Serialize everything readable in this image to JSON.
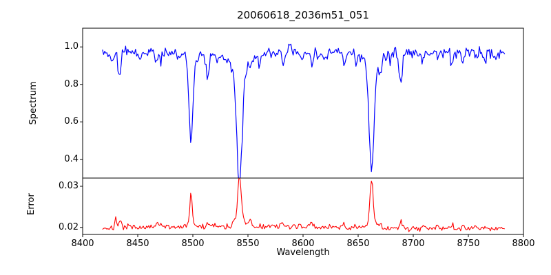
{
  "chart_data": {
    "type": "line",
    "title": "20060618_2036m51_051",
    "xlabel": "Wavelength",
    "xlim": [
      8400,
      8800
    ],
    "x_ticks": [
      {
        "v": 8400,
        "label": "8400"
      },
      {
        "v": 8450,
        "label": "8450"
      },
      {
        "v": 8500,
        "label": "8500"
      },
      {
        "v": 8550,
        "label": "8550"
      },
      {
        "v": 8600,
        "label": "8600"
      },
      {
        "v": 8650,
        "label": "8650"
      },
      {
        "v": 8700,
        "label": "8700"
      },
      {
        "v": 8750,
        "label": "8750"
      },
      {
        "v": 8800,
        "label": "8800"
      }
    ],
    "x_data_start": 8418,
    "x_data_end": 8783,
    "x_step": 1,
    "colors": {
      "spectrum_line": "#0000ff",
      "error_line": "#ff0000",
      "axis": "#000000",
      "background": "#ffffff"
    },
    "subplots": [
      {
        "name": "spectrum",
        "ylabel": "Spectrum",
        "ylim": [
          0.3,
          1.1
        ],
        "y_ticks": [
          {
            "v": 0.4,
            "label": "0.4"
          },
          {
            "v": 0.6,
            "label": "0.6"
          },
          {
            "v": 0.8,
            "label": "0.8"
          },
          {
            "v": 1.0,
            "label": "1.0"
          }
        ],
        "baseline": 0.975,
        "noise_sigma": 0.0125,
        "noise_seed": 42,
        "absorption_lines": [
          {
            "c": 8427.0,
            "d": 0.045,
            "s": 1.2
          },
          {
            "c": 8433.5,
            "d": 0.145,
            "s": 1.2
          },
          {
            "c": 8452.0,
            "d": 0.035,
            "s": 1.0
          },
          {
            "c": 8467.0,
            "d": 0.07,
            "s": 1.2
          },
          {
            "c": 8471.0,
            "d": 0.045,
            "s": 1.0
          },
          {
            "c": 8489.0,
            "d": 0.03,
            "s": 1.0
          },
          {
            "c": 8498.3,
            "d": 0.445,
            "s": 1.7,
            "wd": 0.05,
            "wg": 5
          },
          {
            "c": 8513.5,
            "d": 0.115,
            "s": 1.2
          },
          {
            "c": 8522.0,
            "d": 0.03,
            "s": 1.0
          },
          {
            "c": 8542.3,
            "d": 0.62,
            "s": 2.4,
            "wd": 0.1,
            "wg": 9
          },
          {
            "c": 8552.0,
            "d": 0.045,
            "s": 1.0
          },
          {
            "c": 8560.0,
            "d": 0.03,
            "s": 1.0
          },
          {
            "c": 8582.0,
            "d": 0.04,
            "s": 1.0
          },
          {
            "c": 8588.0,
            "d": -0.045,
            "s": 1.0
          },
          {
            "c": 8598.0,
            "d": 0.035,
            "s": 1.0
          },
          {
            "c": 8608.0,
            "d": 0.05,
            "s": 1.2
          },
          {
            "c": 8614.0,
            "d": 0.04,
            "s": 1.0
          },
          {
            "c": 8621.0,
            "d": 0.035,
            "s": 1.0
          },
          {
            "c": 8637.0,
            "d": 0.05,
            "s": 1.2
          },
          {
            "c": 8648.0,
            "d": 0.035,
            "s": 1.0
          },
          {
            "c": 8662.2,
            "d": 0.555,
            "s": 2.2,
            "wd": 0.08,
            "wg": 8
          },
          {
            "c": 8670.0,
            "d": 0.065,
            "s": 1.3
          },
          {
            "c": 8679.0,
            "d": 0.035,
            "s": 1.0
          },
          {
            "c": 8688.7,
            "d": 0.175,
            "s": 1.3
          },
          {
            "c": 8709.0,
            "d": 0.055,
            "s": 1.1
          },
          {
            "c": 8722.0,
            "d": 0.045,
            "s": 1.0
          },
          {
            "c": 8736.0,
            "d": 0.04,
            "s": 1.0
          },
          {
            "c": 8745.0,
            "d": 0.065,
            "s": 1.1
          },
          {
            "c": 8757.0,
            "d": 0.04,
            "s": 1.0
          },
          {
            "c": 8765.0,
            "d": 0.055,
            "s": 1.0
          },
          {
            "c": 8775.0,
            "d": 0.035,
            "s": 1.0
          }
        ],
        "key_line_minima": [
          {
            "wavelength": 8498,
            "flux": 0.53
          },
          {
            "wavelength": 8542,
            "flux": 0.36
          },
          {
            "wavelength": 8662,
            "flux": 0.42
          },
          {
            "wavelength": 8434,
            "flux": 0.83
          },
          {
            "wavelength": 8514,
            "flux": 0.86
          },
          {
            "wavelength": 8689,
            "flux": 0.8
          }
        ]
      },
      {
        "name": "error",
        "ylabel": "Error",
        "ylim": [
          0.0183,
          0.032
        ],
        "y_ticks": [
          {
            "v": 0.02,
            "label": "0.02"
          },
          {
            "v": 0.03,
            "label": "0.03"
          }
        ],
        "baseline": 0.0197,
        "broad_bump": {
          "c": 8550,
          "h": 0.0005,
          "s": 80
        },
        "noise_sigma": 0.0003,
        "noise_seed": 7,
        "peaks": [
          {
            "c": 8430.0,
            "h": 0.0026,
            "s": 0.9
          },
          {
            "c": 8434.0,
            "h": 0.0017,
            "s": 0.8
          },
          {
            "c": 8452.0,
            "h": 0.0007,
            "s": 0.9
          },
          {
            "c": 8467.0,
            "h": 0.001,
            "s": 1.0
          },
          {
            "c": 8471.0,
            "h": 0.0007,
            "s": 0.9
          },
          {
            "c": 8498.3,
            "h": 0.007,
            "s": 1.1
          },
          {
            "c": 8498.3,
            "h": 0.0008,
            "s": 4.0
          },
          {
            "c": 8513.5,
            "h": 0.0012,
            "s": 0.9
          },
          {
            "c": 8542.3,
            "h": 0.0115,
            "s": 1.5
          },
          {
            "c": 8542.3,
            "h": 0.0015,
            "s": 5.0
          },
          {
            "c": 8552.0,
            "h": 0.0013,
            "s": 0.9
          },
          {
            "c": 8582.0,
            "h": 0.0011,
            "s": 0.9
          },
          {
            "c": 8598.0,
            "h": 0.0007,
            "s": 0.9
          },
          {
            "c": 8608.0,
            "h": 0.0008,
            "s": 1.0
          },
          {
            "c": 8637.0,
            "h": 0.0008,
            "s": 1.0
          },
          {
            "c": 8662.2,
            "h": 0.01,
            "s": 1.4
          },
          {
            "c": 8662.2,
            "h": 0.0012,
            "s": 4.5
          },
          {
            "c": 8670.0,
            "h": 0.0009,
            "s": 1.0
          },
          {
            "c": 8688.7,
            "h": 0.0017,
            "s": 0.9
          },
          {
            "c": 8709.0,
            "h": 0.0008,
            "s": 1.0
          },
          {
            "c": 8722.0,
            "h": 0.0009,
            "s": 1.0
          },
          {
            "c": 8736.0,
            "h": 0.001,
            "s": 1.0
          },
          {
            "c": 8745.0,
            "h": 0.0009,
            "s": 1.0
          },
          {
            "c": 8757.0,
            "h": 0.001,
            "s": 1.0
          },
          {
            "c": 8765.0,
            "h": 0.0008,
            "s": 1.0
          }
        ],
        "key_peak_values": [
          {
            "wavelength": 8498,
            "error": 0.027
          },
          {
            "wavelength": 8542,
            "error": 0.031
          },
          {
            "wavelength": 8662,
            "error": 0.03
          }
        ]
      }
    ]
  }
}
